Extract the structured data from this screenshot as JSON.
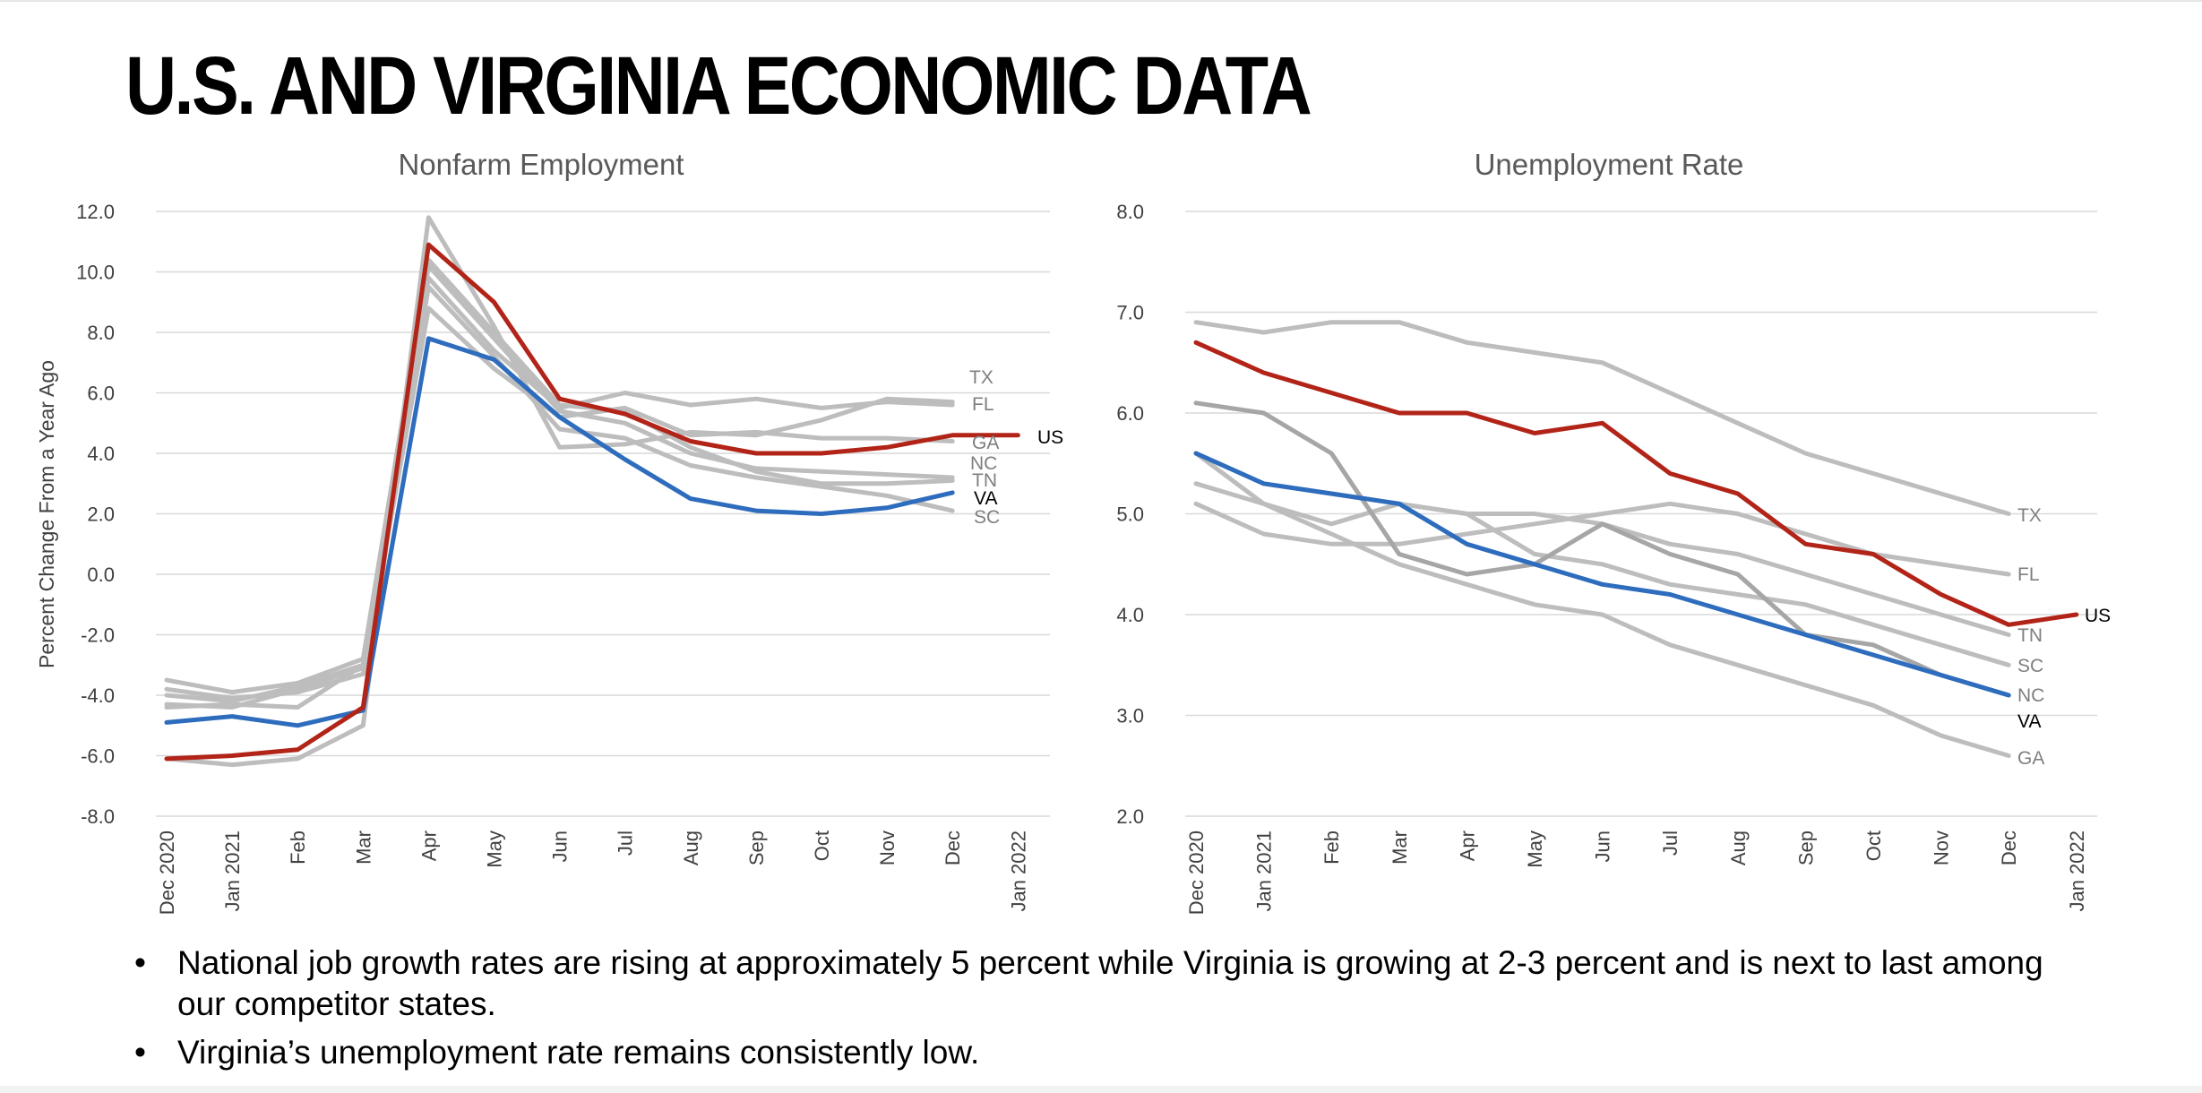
{
  "slide": {
    "title": "U.S. AND VIRGINIA ECONOMIC DATA",
    "bullets": [
      "National job growth rates are rising at approximately 5 percent while Virginia is growing at 2-3 percent and is next to last among our competitor states.",
      "Virginia’s unemployment rate remains consistently low."
    ],
    "bullet_glyph": "•"
  },
  "colors": {
    "US": "#b22418",
    "VA": "#2e6cbd",
    "other": "#bdbdbd",
    "other_dark": "#a6a6a6",
    "grid": "#d9d9d9",
    "label_gray": "#7f7f7f"
  },
  "chart_data": [
    {
      "type": "line",
      "title": "Nonfarm Employment",
      "ylabel": "Percent Change From a Year Ago",
      "xlabel": "",
      "x": [
        "Dec 2020",
        "Jan 2021",
        "Feb",
        "Mar",
        "Apr",
        "May",
        "Jun",
        "Jul",
        "Aug",
        "Sep",
        "Oct",
        "Nov",
        "Dec",
        "Jan 2022"
      ],
      "ylim": [
        -8,
        12
      ],
      "yticks": [
        "-8.0",
        "-6.0",
        "-4.0",
        "-2.0",
        "0.0",
        "2.0",
        "4.0",
        "6.0",
        "8.0",
        "10.0",
        "12.0"
      ],
      "grid": true,
      "legend": "end-of-line labels",
      "series": [
        {
          "name": "TX",
          "values": [
            -4.4,
            -4.3,
            -4.4,
            -3.0,
            9.8,
            7.4,
            5.5,
            6.0,
            5.6,
            5.8,
            5.5,
            5.7,
            5.6,
            null
          ]
        },
        {
          "name": "FL",
          "values": [
            -6.1,
            -6.3,
            -6.1,
            -5.0,
            11.8,
            8.2,
            4.2,
            4.3,
            4.7,
            4.6,
            5.1,
            5.8,
            5.7,
            null
          ]
        },
        {
          "name": "GA",
          "values": [
            -3.8,
            -4.1,
            -3.9,
            -3.3,
            8.8,
            6.8,
            5.2,
            5.5,
            4.6,
            4.7,
            4.5,
            4.5,
            4.4,
            null
          ]
        },
        {
          "name": "NC",
          "values": [
            -4.0,
            -4.2,
            -3.7,
            -3.0,
            10.2,
            7.8,
            5.4,
            5.0,
            4.0,
            3.5,
            3.4,
            3.3,
            3.2,
            null
          ]
        },
        {
          "name": "TN",
          "values": [
            -3.5,
            -3.9,
            -3.6,
            -2.8,
            10.4,
            8.0,
            5.6,
            5.4,
            4.2,
            3.4,
            3.0,
            3.0,
            3.1,
            null
          ]
        },
        {
          "name": "SC",
          "values": [
            -4.3,
            -4.4,
            -3.8,
            -3.1,
            9.5,
            7.2,
            4.8,
            4.5,
            3.6,
            3.2,
            2.9,
            2.6,
            2.1,
            null
          ]
        },
        {
          "name": "VA",
          "values": [
            -4.9,
            -4.7,
            -5.0,
            -4.5,
            7.8,
            7.1,
            5.2,
            3.8,
            2.5,
            2.1,
            2.0,
            2.2,
            2.7,
            null
          ]
        },
        {
          "name": "US",
          "values": [
            -6.1,
            -6.0,
            -5.8,
            -4.4,
            10.9,
            9.0,
            5.8,
            5.3,
            4.4,
            4.0,
            4.0,
            4.2,
            4.6,
            4.6
          ]
        }
      ]
    },
    {
      "type": "line",
      "title": "Unemployment Rate",
      "ylabel": "",
      "xlabel": "",
      "x": [
        "Dec 2020",
        "Jan 2021",
        "Feb",
        "Mar",
        "Apr",
        "May",
        "Jun",
        "Jul",
        "Aug",
        "Sep",
        "Oct",
        "Nov",
        "Dec",
        "Jan 2022"
      ],
      "ylim": [
        2,
        8
      ],
      "yticks": [
        "2.0",
        "3.0",
        "4.0",
        "5.0",
        "6.0",
        "7.0",
        "8.0"
      ],
      "grid": true,
      "legend": "end-of-line labels",
      "series": [
        {
          "name": "TX",
          "values": [
            6.9,
            6.8,
            6.9,
            6.9,
            6.7,
            6.6,
            6.5,
            6.2,
            5.9,
            5.6,
            5.4,
            5.2,
            5.0,
            null
          ]
        },
        {
          "name": "FL",
          "values": [
            5.1,
            4.8,
            4.7,
            4.7,
            4.8,
            4.9,
            5.0,
            5.1,
            5.0,
            4.8,
            4.6,
            4.5,
            4.4,
            null
          ]
        },
        {
          "name": "TN",
          "values": [
            5.6,
            5.3,
            5.2,
            5.1,
            5.0,
            5.0,
            4.9,
            4.7,
            4.6,
            4.4,
            4.2,
            4.0,
            3.8,
            null
          ]
        },
        {
          "name": "SC",
          "values": [
            5.3,
            5.1,
            4.9,
            5.1,
            5.0,
            4.6,
            4.5,
            4.3,
            4.2,
            4.1,
            3.9,
            3.7,
            3.5,
            null
          ]
        },
        {
          "name": "NC",
          "values": [
            6.1,
            6.0,
            5.6,
            4.6,
            4.4,
            4.5,
            4.9,
            4.6,
            4.4,
            3.8,
            3.7,
            3.4,
            3.2,
            null
          ]
        },
        {
          "name": "GA",
          "values": [
            5.6,
            5.1,
            4.8,
            4.5,
            4.3,
            4.1,
            4.0,
            3.7,
            3.5,
            3.3,
            3.1,
            2.8,
            2.6,
            null
          ]
        },
        {
          "name": "VA",
          "values": [
            5.6,
            5.3,
            5.2,
            5.1,
            4.7,
            4.5,
            4.3,
            4.2,
            4.0,
            3.8,
            3.6,
            3.4,
            3.2,
            null
          ]
        },
        {
          "name": "US",
          "values": [
            6.7,
            6.4,
            6.2,
            6.0,
            6.0,
            5.8,
            5.9,
            5.4,
            5.2,
            4.7,
            4.6,
            4.2,
            3.9,
            4.0
          ]
        }
      ]
    }
  ]
}
